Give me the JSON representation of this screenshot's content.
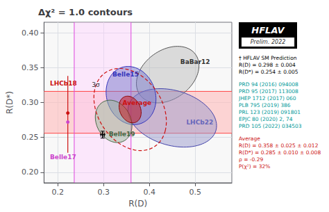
{
  "chart_data": {
    "type": "ellipse",
    "title": "Δχ² = 1.0 contours",
    "xlabel": "R(D)",
    "ylabel": "R(D*)",
    "xlim": [
      0.17,
      0.58
    ],
    "ylim": [
      0.185,
      0.415
    ],
    "xticks": [
      0.2,
      0.3,
      0.4,
      0.5
    ],
    "yticks": [
      {
        "value": 0.2,
        "label": "0.20"
      },
      0.25,
      {
        "value": 0.3,
        "label": "0.30"
      },
      0.35,
      {
        "value": 0.4,
        "label": "0.40"
      }
    ],
    "grid": true,
    "background": "#ffffff",
    "plot_bg": "#f8f8f8",
    "hband": {
      "lo": 0.256,
      "hi": 0.316,
      "color": "#ffbbbb",
      "line_color": "#ff4444"
    },
    "vband": {
      "lo": 0.236,
      "hi": 0.36,
      "color": "#ffccff",
      "line_color": "#dd44dd",
      "label": "Belle17",
      "label_x": 0.183,
      "label_y": 0.222,
      "label_color": "#cc44cc"
    },
    "lhcb18": {
      "x": 0.222,
      "y_lo": 0.228,
      "y_hi": 0.338,
      "line_color": "#cc1111",
      "points": [
        {
          "y": 0.285,
          "color": "#cc1111"
        },
        {
          "y": 0.272,
          "color": "#cc44cc"
        }
      ],
      "label": "LHCb18",
      "label_x": 0.183,
      "label_y": 0.327,
      "label_color": "#cc1111"
    },
    "ellipses": [
      {
        "name": "BaBar12",
        "cx": 0.44,
        "cy": 0.34,
        "width": 0.14,
        "height": 0.075,
        "angle": 15,
        "color": "#bbbbbb",
        "edge_color": "#555555",
        "label_x": 0.5,
        "label_y": 0.358,
        "label_color": "#333333"
      },
      {
        "name": "LHCb22",
        "cx": 0.45,
        "cy": 0.278,
        "width": 0.195,
        "height": 0.08,
        "angle": -8,
        "color": "#9999cc",
        "edge_color": "#4444aa",
        "label_x": 0.51,
        "label_y": 0.272,
        "label_color": "#6666bb"
      },
      {
        "name": "Belle15",
        "cx": 0.36,
        "cy": 0.31,
        "width": 0.11,
        "height": 0.082,
        "angle": -12,
        "color": "#7777cc",
        "edge_color": "#3333bb",
        "label_x": 0.348,
        "label_y": 0.34,
        "label_color": "#3333bb"
      },
      {
        "name": "Belle19",
        "cx": 0.322,
        "cy": 0.273,
        "width": 0.082,
        "height": 0.058,
        "angle": -18,
        "color": "#99bb99",
        "edge_color": "#446644",
        "label_x": 0.34,
        "label_y": 0.255,
        "label_color": "#446644"
      },
      {
        "name": "Average",
        "cx": 0.358,
        "cy": 0.29,
        "width": 0.05,
        "height": 0.036,
        "angle": -22,
        "color": "#cc1111",
        "edge_color": "#880000",
        "label_x": 0.373,
        "label_y": 0.3,
        "label_color": "#cc1111"
      }
    ],
    "sigma3": {
      "cx": 0.358,
      "cy": 0.29,
      "width": 0.165,
      "height": 0.108,
      "angle": -22,
      "color": "#cc1111",
      "line_style": "dashed",
      "label": "3σ",
      "label_x": 0.283,
      "label_y": 0.325,
      "label_color": "#333333"
    },
    "sm": {
      "x": 0.298,
      "y": 0.254,
      "xerr": 0.004,
      "yerr": 0.005,
      "color": "#000000",
      "marker": "plus"
    },
    "badge": {
      "text": "HFLAV",
      "subtext": "Prelim. 2022"
    },
    "notes": [
      {
        "text": "† HFLAV SM Prediction\nR(D) = 0.298 ± 0.004\nR(D*) = 0.254 ± 0.005",
        "color": "#000000"
      },
      {
        "text": "PRD 94 (2016) 094008\nPRD 95 (2017) 113008\nJHEP 1712 (2017) 060\nPLB 795 (2019) 386\nPRL 123 (2019) 091801\nEPJC 80 (2020) 2, 74\nPRD 105 (2022) 034503",
        "color": "#009999"
      },
      {
        "text": "Average\nR(D) = 0.358 ± 0.025 ± 0.012\nR(D*) = 0.285 ± 0.010 ± 0.008\nρ = -0.29\nP(χ²) = 32%",
        "color": "#cc1111"
      }
    ]
  }
}
